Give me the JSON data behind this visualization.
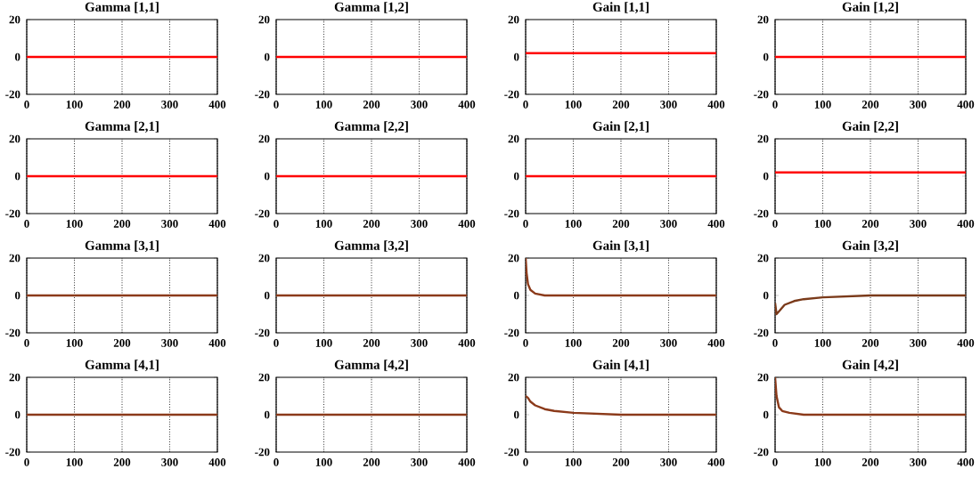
{
  "chart_data": [
    {
      "type": "line",
      "title": "Gamma [1,1]",
      "x": [
        0,
        400
      ],
      "series": [
        {
          "color": "#ff0000",
          "values": [
            0,
            0
          ]
        }
      ],
      "xlim": [
        0,
        400
      ],
      "ylim": [
        -20,
        20
      ],
      "xticks": [
        0,
        100,
        200,
        300,
        400
      ],
      "yticks": [
        -20,
        0,
        20
      ],
      "grid": "x"
    },
    {
      "type": "line",
      "title": "Gamma [1,2]",
      "x": [
        0,
        400
      ],
      "series": [
        {
          "color": "#ff0000",
          "values": [
            0,
            0
          ]
        }
      ],
      "xlim": [
        0,
        400
      ],
      "ylim": [
        -20,
        20
      ],
      "xticks": [
        0,
        100,
        200,
        300,
        400
      ],
      "yticks": [
        -20,
        0,
        20
      ],
      "grid": "x"
    },
    {
      "type": "line",
      "title": "Gain [1,1]",
      "x": [
        0,
        400
      ],
      "series": [
        {
          "color": "#ff0000",
          "values": [
            2,
            2
          ]
        }
      ],
      "xlim": [
        0,
        400
      ],
      "ylim": [
        -20,
        20
      ],
      "xticks": [
        0,
        100,
        200,
        300,
        400
      ],
      "yticks": [
        -20,
        0,
        20
      ],
      "grid": "x"
    },
    {
      "type": "line",
      "title": "Gain [1,2]",
      "x": [
        0,
        400
      ],
      "series": [
        {
          "color": "#ff0000",
          "values": [
            0,
            0
          ]
        }
      ],
      "xlim": [
        0,
        400
      ],
      "ylim": [
        -20,
        20
      ],
      "xticks": [
        0,
        100,
        200,
        300,
        400
      ],
      "yticks": [
        -20,
        0,
        20
      ],
      "grid": "x"
    },
    {
      "type": "line",
      "title": "Gamma [2,1]",
      "x": [
        0,
        400
      ],
      "series": [
        {
          "color": "#ff0000",
          "values": [
            0,
            0
          ]
        }
      ],
      "xlim": [
        0,
        400
      ],
      "ylim": [
        -20,
        20
      ],
      "xticks": [
        0,
        100,
        200,
        300,
        400
      ],
      "yticks": [
        -20,
        0,
        20
      ],
      "grid": "x"
    },
    {
      "type": "line",
      "title": "Gamma [2,2]",
      "x": [
        0,
        400
      ],
      "series": [
        {
          "color": "#ff0000",
          "values": [
            0,
            0
          ]
        }
      ],
      "xlim": [
        0,
        400
      ],
      "ylim": [
        -20,
        20
      ],
      "xticks": [
        0,
        100,
        200,
        300,
        400
      ],
      "yticks": [
        -20,
        0,
        20
      ],
      "grid": "x"
    },
    {
      "type": "line",
      "title": "Gain [2,1]",
      "x": [
        0,
        400
      ],
      "series": [
        {
          "color": "#ff0000",
          "values": [
            0,
            0
          ]
        }
      ],
      "xlim": [
        0,
        400
      ],
      "ylim": [
        -20,
        20
      ],
      "xticks": [
        0,
        100,
        200,
        300,
        400
      ],
      "yticks": [
        -20,
        0,
        20
      ],
      "grid": "x"
    },
    {
      "type": "line",
      "title": "Gain [2,2]",
      "x": [
        0,
        400
      ],
      "series": [
        {
          "color": "#ff0000",
          "values": [
            2,
            2
          ]
        }
      ],
      "xlim": [
        0,
        400
      ],
      "ylim": [
        -20,
        20
      ],
      "xticks": [
        0,
        100,
        200,
        300,
        400
      ],
      "yticks": [
        -20,
        0,
        20
      ],
      "grid": "x"
    },
    {
      "type": "line",
      "title": "Gamma [3,1]",
      "x": [
        0,
        400
      ],
      "series": [
        {
          "color": "#8b3a1a",
          "values": [
            0,
            0
          ]
        }
      ],
      "xlim": [
        0,
        400
      ],
      "ylim": [
        -20,
        20
      ],
      "xticks": [
        0,
        100,
        200,
        300,
        400
      ],
      "yticks": [
        -20,
        0,
        20
      ],
      "grid": "x"
    },
    {
      "type": "line",
      "title": "Gamma [3,2]",
      "x": [
        0,
        400
      ],
      "series": [
        {
          "color": "#8b3a1a",
          "values": [
            0,
            0
          ]
        }
      ],
      "xlim": [
        0,
        400
      ],
      "ylim": [
        -20,
        20
      ],
      "xticks": [
        0,
        100,
        200,
        300,
        400
      ],
      "yticks": [
        -20,
        0,
        20
      ],
      "grid": "x"
    },
    {
      "type": "line",
      "title": "Gain [3,1]",
      "x": [
        0,
        2,
        5,
        10,
        20,
        40,
        100,
        400
      ],
      "series": [
        {
          "color": "#8b3a1a",
          "values": [
            20,
            12,
            6,
            3,
            1,
            0,
            0,
            0
          ]
        }
      ],
      "xlim": [
        0,
        400
      ],
      "ylim": [
        -20,
        20
      ],
      "xticks": [
        0,
        100,
        200,
        300,
        400
      ],
      "yticks": [
        -20,
        0,
        20
      ],
      "grid": "x"
    },
    {
      "type": "line",
      "title": "Gain [3,2]",
      "x": [
        0,
        3,
        10,
        20,
        40,
        60,
        100,
        200,
        400
      ],
      "series": [
        {
          "color": "#7a3a1a",
          "values": [
            -4,
            -10,
            -8,
            -5,
            -3,
            -2,
            -1,
            0,
            0
          ]
        }
      ],
      "xlim": [
        0,
        400
      ],
      "ylim": [
        -20,
        20
      ],
      "xticks": [
        0,
        100,
        200,
        300,
        400
      ],
      "yticks": [
        -20,
        0,
        20
      ],
      "grid": "x"
    },
    {
      "type": "line",
      "title": "Gamma [4,1]",
      "x": [
        0,
        400
      ],
      "series": [
        {
          "color": "#8b3a1a",
          "values": [
            0,
            0
          ]
        }
      ],
      "xlim": [
        0,
        400
      ],
      "ylim": [
        -20,
        20
      ],
      "xticks": [
        0,
        100,
        200,
        300,
        400
      ],
      "yticks": [
        -20,
        0,
        20
      ],
      "grid": "x"
    },
    {
      "type": "line",
      "title": "Gamma [4,2]",
      "x": [
        0,
        400
      ],
      "series": [
        {
          "color": "#8b3a1a",
          "values": [
            0,
            0
          ]
        }
      ],
      "xlim": [
        0,
        400
      ],
      "ylim": [
        -20,
        20
      ],
      "xticks": [
        0,
        100,
        200,
        300,
        400
      ],
      "yticks": [
        -20,
        0,
        20
      ],
      "grid": "x"
    },
    {
      "type": "line",
      "title": "Gain [4,1]",
      "x": [
        0,
        5,
        10,
        20,
        40,
        60,
        100,
        200,
        400
      ],
      "series": [
        {
          "color": "#8b3a1a",
          "values": [
            10,
            9,
            7,
            5,
            3,
            2,
            1,
            0,
            0
          ]
        }
      ],
      "xlim": [
        0,
        400
      ],
      "ylim": [
        -20,
        20
      ],
      "xticks": [
        0,
        100,
        200,
        300,
        400
      ],
      "yticks": [
        -20,
        0,
        20
      ],
      "grid": "x"
    },
    {
      "type": "line",
      "title": "Gain [4,2]",
      "x": [
        0,
        3,
        8,
        15,
        30,
        60,
        400
      ],
      "series": [
        {
          "color": "#8b3a1a",
          "values": [
            20,
            10,
            4,
            2,
            1,
            0,
            0
          ]
        }
      ],
      "xlim": [
        0,
        400
      ],
      "ylim": [
        -20,
        20
      ],
      "xticks": [
        0,
        100,
        200,
        300,
        400
      ],
      "yticks": [
        -20,
        0,
        20
      ],
      "grid": "x"
    }
  ]
}
